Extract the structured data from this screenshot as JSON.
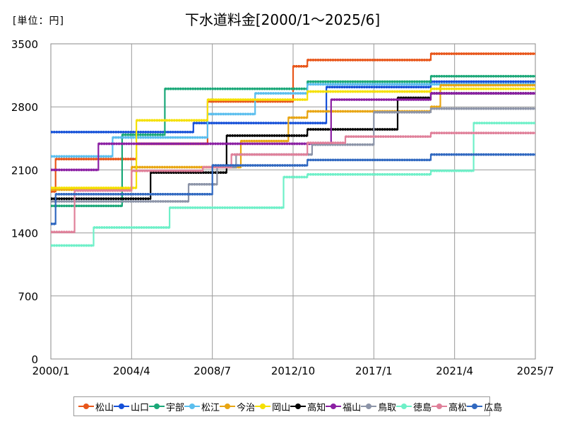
{
  "unit_label": "[単位：円]",
  "chart_data": {
    "type": "line",
    "title": "下水道料金[2000/1～2025/6]",
    "ylim": [
      0,
      3500
    ],
    "y_ticks": [
      0,
      700,
      1400,
      2100,
      2800,
      3500
    ],
    "y_tick_labels": [
      "0",
      "700",
      "1400",
      "2100",
      "2800",
      "3500"
    ],
    "xlim": [
      2000.0,
      2025.5
    ],
    "x_ticks": [
      2000.0,
      2004.25,
      2008.5,
      2012.75,
      2017.0,
      2021.25,
      2025.5
    ],
    "x_tick_labels": [
      "2000/1",
      "2004/4",
      "2008/7",
      "2012/10",
      "2017/1",
      "2021/4",
      "2025/7"
    ],
    "grid": true,
    "legend_position": "bottom",
    "series": [
      {
        "name": "松山",
        "color": "#E8561A",
        "steps": [
          [
            2000.0,
            1860
          ],
          [
            2000.25,
            2220
          ],
          [
            2004.5,
            2390
          ],
          [
            2008.25,
            2860
          ],
          [
            2012.75,
            3250
          ],
          [
            2013.5,
            3320
          ],
          [
            2020.0,
            3390
          ],
          [
            2025.5,
            3390
          ]
        ]
      },
      {
        "name": "山口",
        "color": "#1550D8",
        "steps": [
          [
            2000.0,
            2520
          ],
          [
            2007.5,
            2620
          ],
          [
            2014.5,
            3020
          ],
          [
            2020.0,
            3080
          ],
          [
            2025.5,
            3080
          ]
        ]
      },
      {
        "name": "宇部",
        "color": "#1AA878",
        "steps": [
          [
            2000.0,
            1700
          ],
          [
            2003.75,
            2490
          ],
          [
            2006.0,
            3000
          ],
          [
            2013.5,
            3080
          ],
          [
            2020.0,
            3140
          ],
          [
            2025.5,
            3140
          ]
        ]
      },
      {
        "name": "松江",
        "color": "#5ABEEE",
        "steps": [
          [
            2000.0,
            2250
          ],
          [
            2003.25,
            2460
          ],
          [
            2008.25,
            2720
          ],
          [
            2010.75,
            2950
          ],
          [
            2013.5,
            3050
          ],
          [
            2025.5,
            3050
          ]
        ]
      },
      {
        "name": "今治",
        "color": "#E8A512",
        "steps": [
          [
            2000.0,
            1880
          ],
          [
            2004.25,
            2130
          ],
          [
            2010.0,
            2420
          ],
          [
            2012.5,
            2680
          ],
          [
            2013.5,
            2750
          ],
          [
            2020.0,
            2800
          ],
          [
            2020.5,
            3040
          ],
          [
            2025.5,
            3040
          ]
        ]
      },
      {
        "name": "岡山",
        "color": "#F5E000",
        "steps": [
          [
            2000.0,
            1900
          ],
          [
            2004.5,
            2650
          ],
          [
            2008.25,
            2880
          ],
          [
            2013.5,
            2970
          ],
          [
            2020.0,
            3000
          ],
          [
            2025.5,
            3000
          ]
        ]
      },
      {
        "name": "高知",
        "color": "#000000",
        "steps": [
          [
            2000.0,
            1780
          ],
          [
            2005.25,
            2070
          ],
          [
            2009.25,
            2480
          ],
          [
            2013.5,
            2550
          ],
          [
            2018.25,
            2900
          ],
          [
            2020.0,
            2950
          ],
          [
            2025.5,
            2950
          ]
        ]
      },
      {
        "name": "福山",
        "color": "#8B1FA3",
        "steps": [
          [
            2000.0,
            2100
          ],
          [
            2002.5,
            2390
          ],
          [
            2014.75,
            2880
          ],
          [
            2020.0,
            2950
          ],
          [
            2025.5,
            2950
          ]
        ]
      },
      {
        "name": "鳥取",
        "color": "#8C94A8",
        "steps": [
          [
            2000.0,
            1750
          ],
          [
            2007.25,
            1940
          ],
          [
            2008.75,
            2130
          ],
          [
            2009.75,
            2270
          ],
          [
            2013.75,
            2380
          ],
          [
            2017.0,
            2740
          ],
          [
            2020.0,
            2780
          ],
          [
            2025.5,
            2780
          ]
        ]
      },
      {
        "name": "徳島",
        "color": "#6EF0C8",
        "steps": [
          [
            2000.0,
            1260
          ],
          [
            2002.25,
            1460
          ],
          [
            2006.25,
            1680
          ],
          [
            2012.25,
            2020
          ],
          [
            2013.5,
            2050
          ],
          [
            2020.0,
            2090
          ],
          [
            2022.25,
            2620
          ],
          [
            2025.5,
            2620
          ]
        ]
      },
      {
        "name": "高松",
        "color": "#E0809A",
        "steps": [
          [
            2000.0,
            1410
          ],
          [
            2001.25,
            1870
          ],
          [
            2004.25,
            2090
          ],
          [
            2008.0,
            2130
          ],
          [
            2009.5,
            2270
          ],
          [
            2013.5,
            2400
          ],
          [
            2015.5,
            2470
          ],
          [
            2020.0,
            2510
          ],
          [
            2025.5,
            2510
          ]
        ]
      },
      {
        "name": "広島",
        "color": "#3068C0",
        "steps": [
          [
            2000.0,
            1500
          ],
          [
            2000.25,
            1830
          ],
          [
            2008.5,
            2150
          ],
          [
            2013.5,
            2210
          ],
          [
            2020.0,
            2270
          ],
          [
            2025.5,
            2270
          ]
        ]
      }
    ]
  }
}
